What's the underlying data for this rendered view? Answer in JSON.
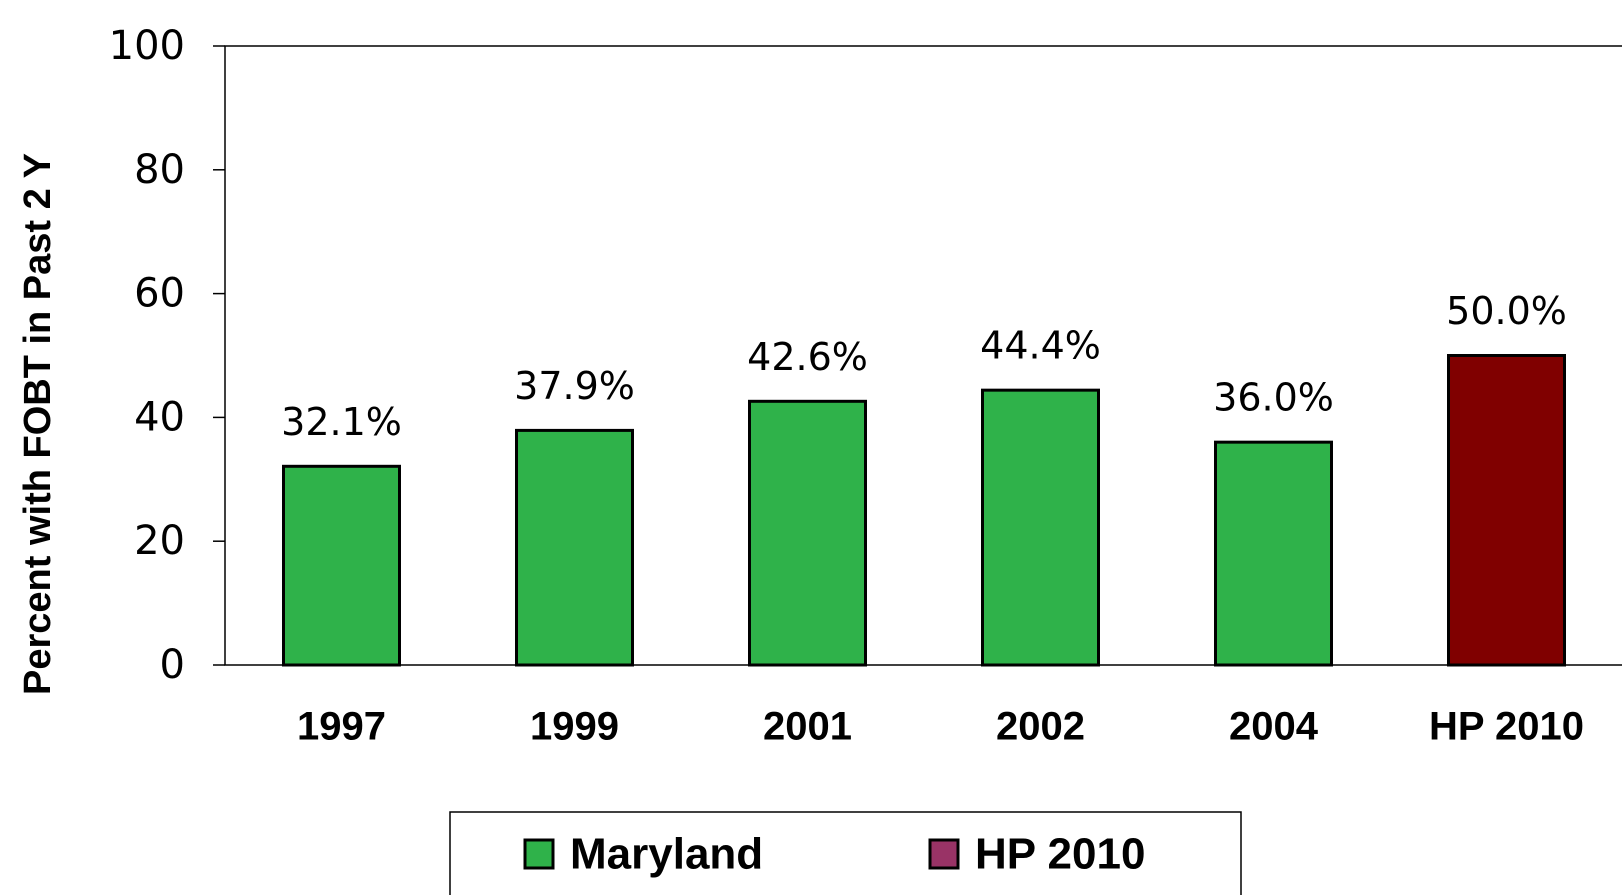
{
  "chart_data": {
    "type": "bar",
    "y_label": "Percent with FOBT in Past 2 Y",
    "categories": [
      "1997",
      "1999",
      "2001",
      "2002",
      "2004",
      "HP 2010"
    ],
    "series": [
      {
        "name": "Maryland",
        "color": "#2fb24a",
        "legend_color": "#2fb24a",
        "values": [
          32.1,
          37.9,
          42.6,
          44.4,
          36.0,
          null
        ],
        "value_labels": [
          "32.1%",
          "37.9%",
          "42.6%",
          "44.4%",
          "36.0%",
          null
        ]
      },
      {
        "name": "HP 2010",
        "color": "#800000",
        "legend_color": "#993366",
        "values": [
          null,
          null,
          null,
          null,
          null,
          50.0
        ],
        "value_labels": [
          null,
          null,
          null,
          null,
          null,
          "50.0%"
        ]
      }
    ],
    "ylim": [
      0,
      100
    ],
    "yticks": [
      0,
      20,
      40,
      60,
      80,
      100
    ],
    "grid": false,
    "legend": "bottom"
  }
}
